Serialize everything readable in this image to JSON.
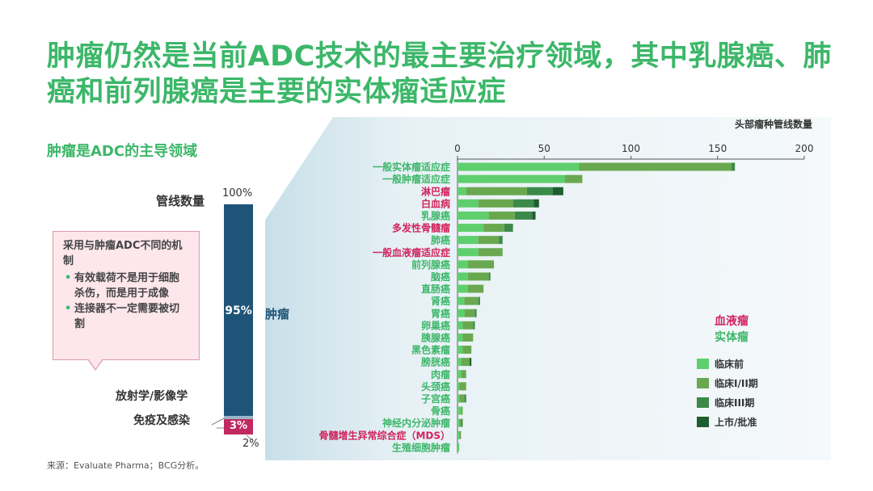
{
  "title": "肿瘤仍然是当前ADC技术的最主要治疗领域，其中乳腺癌、肺癌和前列腺癌是主要的实体瘤适应症",
  "left": {
    "subtitle": "肿瘤是ADC的主导领域",
    "pipeline_label": "管线数量",
    "pct_top": "100%",
    "tumor_pct": "95%",
    "tumor_label": "肿瘤",
    "radio_label": "放射学/影像学",
    "immune_label": "免疫及感染",
    "immune_pct": "3%",
    "radio_pct": "2%",
    "callout": {
      "heading": "采用与肿瘤ADC不同的机制",
      "bullets": [
        "有效载荷不是用于细胞杀伤，而是用于成像",
        "连接器不一定需要被切割"
      ]
    }
  },
  "source": "来源：Evaluate Pharma；BCG分析。",
  "colors": {
    "solid": "#3cb769",
    "blood": "#d1245c"
  },
  "chart_data": {
    "type": "bar",
    "orientation": "horizontal",
    "stacked": true,
    "title": "头部瘤种管线数量",
    "xlim": [
      0,
      200
    ],
    "xticks": [
      0,
      50,
      100,
      150,
      200
    ],
    "legend_groups": [
      {
        "name": "血液瘤",
        "color": "#d1245c"
      },
      {
        "name": "实体瘤",
        "color": "#3cb769"
      }
    ],
    "series": [
      {
        "name": "临床前",
        "color": "#5fcf6e"
      },
      {
        "name": "临床I/II期",
        "color": "#6aa84f"
      },
      {
        "name": "临床III期",
        "color": "#3c8a4a"
      },
      {
        "name": "上市/批准",
        "color": "#1e5e2e"
      }
    ],
    "categories": [
      {
        "label": "一般实体瘤适应症",
        "group": "实体瘤",
        "values": [
          70,
          88,
          2,
          0
        ]
      },
      {
        "label": "一般肿瘤适应症",
        "group": "实体瘤",
        "values": [
          62,
          10,
          0,
          0
        ]
      },
      {
        "label": "淋巴瘤",
        "group": "血液瘤",
        "values": [
          5,
          35,
          15,
          6
        ]
      },
      {
        "label": "白血病",
        "group": "血液瘤",
        "values": [
          12,
          20,
          12,
          3
        ]
      },
      {
        "label": "乳腺癌",
        "group": "实体瘤",
        "values": [
          18,
          15,
          10,
          2
        ]
      },
      {
        "label": "多发性骨髓瘤",
        "group": "血液瘤",
        "values": [
          15,
          12,
          5,
          0
        ]
      },
      {
        "label": "肺癌",
        "group": "实体瘤",
        "values": [
          12,
          12,
          2,
          0
        ]
      },
      {
        "label": "一般血液瘤适应症",
        "group": "血液瘤",
        "values": [
          12,
          14,
          0,
          0
        ]
      },
      {
        "label": "前列腺癌",
        "group": "实体瘤",
        "values": [
          6,
          15,
          0,
          0
        ]
      },
      {
        "label": "脑癌",
        "group": "实体瘤",
        "values": [
          6,
          12,
          1,
          0
        ]
      },
      {
        "label": "直肠癌",
        "group": "实体瘤",
        "values": [
          6,
          9,
          0,
          0
        ]
      },
      {
        "label": "肾癌",
        "group": "实体瘤",
        "values": [
          4,
          8,
          1,
          0
        ]
      },
      {
        "label": "胃癌",
        "group": "实体瘤",
        "values": [
          4,
          6,
          1,
          0
        ]
      },
      {
        "label": "卵巢癌",
        "group": "实体瘤",
        "values": [
          3,
          6,
          1,
          0
        ]
      },
      {
        "label": "胰腺癌",
        "group": "实体瘤",
        "values": [
          3,
          6,
          0,
          0
        ]
      },
      {
        "label": "黑色素瘤",
        "group": "实体瘤",
        "values": [
          3,
          5,
          0,
          0
        ]
      },
      {
        "label": "膀胱癌",
        "group": "实体瘤",
        "values": [
          2,
          5,
          0,
          1
        ]
      },
      {
        "label": "肉瘤",
        "group": "实体瘤",
        "values": [
          2,
          3,
          0,
          0
        ]
      },
      {
        "label": "头颈癌",
        "group": "实体瘤",
        "values": [
          1,
          4,
          0,
          0
        ]
      },
      {
        "label": "子宫癌",
        "group": "实体瘤",
        "values": [
          1,
          3,
          1,
          0
        ]
      },
      {
        "label": "骨癌",
        "group": "实体瘤",
        "values": [
          2,
          1,
          0,
          0
        ]
      },
      {
        "label": "神经内分泌肿瘤",
        "group": "实体瘤",
        "values": [
          1,
          1,
          1,
          0
        ]
      },
      {
        "label": "骨髓增生异常综合症（MDS）",
        "group": "血液瘤",
        "values": [
          1,
          1,
          0,
          0
        ]
      },
      {
        "label": "生殖细胞肿瘤",
        "group": "实体瘤",
        "values": [
          1,
          0,
          0,
          0
        ]
      }
    ]
  }
}
